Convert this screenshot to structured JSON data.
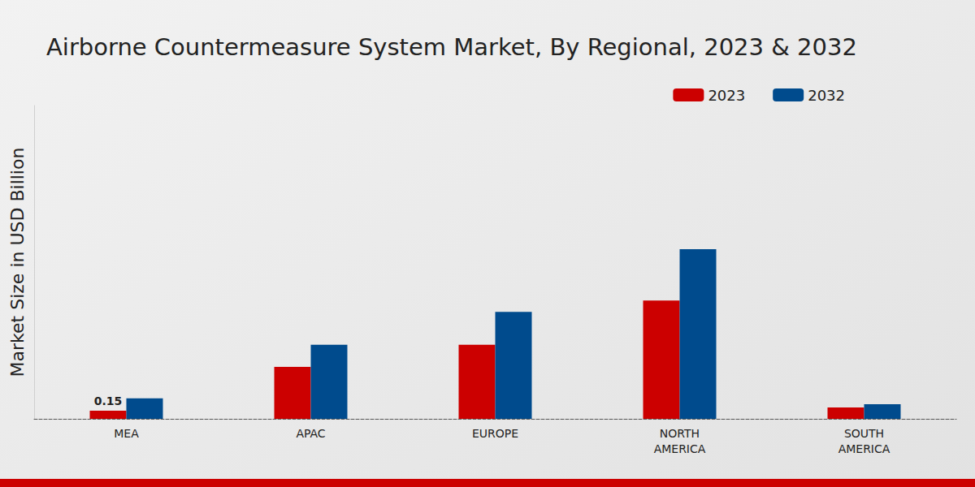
{
  "chart_data": {
    "type": "bar",
    "title": "Airborne Countermeasure System Market, By Regional, 2023 & 2032",
    "y_label": "Market Size in USD Billion",
    "categories": [
      "MEA",
      "APAC",
      "EUROPE",
      "NORTH\nAMERICA",
      "SOUTH\nAMERICA"
    ],
    "series": [
      {
        "name": "2023",
        "color": "#cc0000",
        "values": [
          0.15,
          0.96,
          1.37,
          2.19,
          0.21
        ],
        "value_labels": [
          "0.15",
          null,
          null,
          null,
          null
        ]
      },
      {
        "name": "2032",
        "color": "#004b8d",
        "values": [
          0.38,
          1.37,
          1.98,
          3.14,
          0.27
        ]
      }
    ],
    "ylim": [
      0,
      5.8
    ],
    "yticks": [],
    "grid": false,
    "legend": "top-right",
    "tick_labels": "x"
  }
}
